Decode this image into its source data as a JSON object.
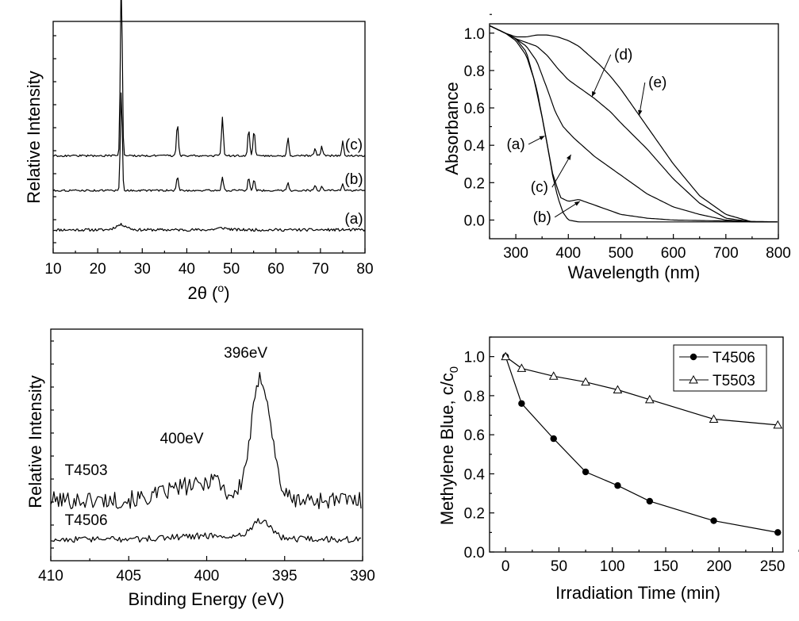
{
  "chart_data": [
    {
      "id": "xrd",
      "type": "line",
      "xlabel": "2θ (",
      "xlabel_sup": "o",
      "xlabel_end": ")",
      "ylabel": "Relative Intensity",
      "xlim": [
        10,
        80
      ],
      "xticks": [
        "10",
        "20",
        "30",
        "40",
        "50",
        "60",
        "70",
        "80"
      ],
      "series": [
        {
          "name": "(a)",
          "baseline": 0.1,
          "noise": 0.006,
          "peaks": [
            [
              25.3,
              0.022
            ],
            [
              48,
              0.008
            ]
          ],
          "width": 1.8
        },
        {
          "name": "(b)",
          "baseline": 0.27,
          "noise": 0.004,
          "peaks": [
            [
              25.3,
              0.43
            ],
            [
              37.9,
              0.06
            ],
            [
              48.0,
              0.06
            ],
            [
              53.9,
              0.055
            ],
            [
              55.1,
              0.05
            ],
            [
              62.7,
              0.035
            ],
            [
              68.8,
              0.02
            ],
            [
              70.3,
              0.02
            ],
            [
              75.0,
              0.025
            ]
          ],
          "width": 0.3
        },
        {
          "name": "(c)",
          "baseline": 0.42,
          "noise": 0.004,
          "peaks": [
            [
              25.3,
              0.78
            ],
            [
              37.9,
              0.14
            ],
            [
              48.0,
              0.17
            ],
            [
              53.9,
              0.12
            ],
            [
              55.1,
              0.11
            ],
            [
              62.7,
              0.08
            ],
            [
              68.8,
              0.035
            ],
            [
              70.3,
              0.04
            ],
            [
              75.0,
              0.06
            ]
          ],
          "width": 0.3
        }
      ]
    },
    {
      "id": "uvvis",
      "type": "line",
      "xlabel": "Wavelength (nm)",
      "ylabel": "Absorbance",
      "xlim": [
        250,
        800
      ],
      "ylim": [
        -0.1,
        1.05
      ],
      "xticks": [
        300,
        400,
        500,
        600,
        700,
        800
      ],
      "yticks": [
        "0.0",
        "0.2",
        "0.4",
        "0.6",
        "0.8",
        "1.0"
      ],
      "series": [
        {
          "name": "(a)",
          "x": [
            250,
            280,
            300,
            320,
            335,
            350,
            360,
            370,
            380,
            390,
            400,
            420,
            450,
            500,
            800
          ],
          "y": [
            1.04,
            1.0,
            0.96,
            0.88,
            0.75,
            0.55,
            0.4,
            0.24,
            0.12,
            0.04,
            0.0,
            -0.01,
            -0.01,
            -0.01,
            -0.01
          ]
        },
        {
          "name": "(b)",
          "x": [
            250,
            280,
            300,
            320,
            340,
            355,
            370,
            385,
            400,
            420,
            440,
            470,
            500,
            550,
            600,
            800
          ],
          "y": [
            1.04,
            1.0,
            0.97,
            0.9,
            0.7,
            0.48,
            0.25,
            0.12,
            0.1,
            0.11,
            0.09,
            0.06,
            0.03,
            0.01,
            0.0,
            -0.01
          ]
        },
        {
          "name": "(c)",
          "x": [
            250,
            280,
            300,
            320,
            340,
            360,
            375,
            390,
            410,
            430,
            450,
            500,
            550,
            600,
            650,
            700,
            750,
            800
          ],
          "y": [
            1.04,
            1.0,
            0.97,
            0.93,
            0.85,
            0.7,
            0.58,
            0.5,
            0.44,
            0.39,
            0.34,
            0.24,
            0.14,
            0.07,
            0.03,
            0.0,
            -0.01,
            -0.01
          ]
        },
        {
          "name": "(d)",
          "x": [
            250,
            280,
            300,
            320,
            340,
            360,
            380,
            400,
            420,
            450,
            480,
            500,
            550,
            600,
            650,
            700,
            750,
            800
          ],
          "y": [
            1.04,
            1.0,
            0.97,
            0.95,
            0.93,
            0.88,
            0.81,
            0.75,
            0.71,
            0.65,
            0.58,
            0.52,
            0.38,
            0.22,
            0.09,
            0.01,
            -0.01,
            -0.01
          ]
        },
        {
          "name": "(e)",
          "x": [
            250,
            280,
            300,
            320,
            340,
            360,
            380,
            400,
            420,
            440,
            460,
            480,
            500,
            550,
            600,
            650,
            700,
            750,
            800
          ],
          "y": [
            1.04,
            1.0,
            0.98,
            0.98,
            0.99,
            0.99,
            0.98,
            0.96,
            0.93,
            0.88,
            0.83,
            0.77,
            0.7,
            0.5,
            0.3,
            0.13,
            0.03,
            -0.01,
            -0.01
          ]
        }
      ],
      "labels": [
        {
          "text": "(a)",
          "x": 300,
          "y": 0.38,
          "arrow_to": [
            355,
            0.45
          ]
        },
        {
          "text": "(c)",
          "x": 345,
          "y": 0.15,
          "arrow_to": [
            405,
            0.35
          ]
        },
        {
          "text": "(b)",
          "x": 350,
          "y": -0.01,
          "arrow_to": [
            422,
            0.1
          ]
        },
        {
          "text": "(d)",
          "x": 505,
          "y": 0.86,
          "arrow_to": [
            445,
            0.66
          ]
        },
        {
          "text": "(e)",
          "x": 570,
          "y": 0.71,
          "arrow_to": [
            535,
            0.56
          ]
        }
      ]
    },
    {
      "id": "xps",
      "type": "line",
      "xlabel": "Binding Energy (eV)",
      "ylabel": "Relative Intensity",
      "xlim": [
        410,
        390
      ],
      "xticks": [
        410,
        405,
        400,
        395,
        390
      ],
      "series": [
        {
          "name": "T4503",
          "baseline": 0.34,
          "noise": 0.05,
          "hump": [
            401,
            0.08,
            2.2
          ],
          "peaks": [
            [
              396.5,
              0.68,
              0.9
            ],
            [
              399.5,
              0.08,
              0.6
            ]
          ]
        },
        {
          "name": "T4506",
          "baseline": 0.12,
          "noise": 0.018,
          "hump": [
            400,
            0.02,
            3.0
          ],
          "peaks": [
            [
              396.5,
              0.1,
              0.9
            ]
          ]
        }
      ],
      "annotations": [
        {
          "text": "396eV",
          "x": 397.5,
          "y": 1.14
        },
        {
          "text": "400eV",
          "x": 401.6,
          "y": 0.66
        },
        {
          "text": "T4503",
          "x": 409.1,
          "y": 0.48
        },
        {
          "text": "T4506",
          "x": 409.1,
          "y": 0.2
        }
      ]
    },
    {
      "id": "photocatalysis",
      "type": "line",
      "xlabel": "Irradiation Time (min)",
      "ylabel": "Methylene Blue, c/c",
      "ylabel_sub": "0",
      "xlim": [
        -15,
        260
      ],
      "ylim": [
        0.0,
        1.1
      ],
      "xticks": [
        0,
        50,
        100,
        150,
        200,
        250
      ],
      "yticks": [
        "0.0",
        "0.2",
        "0.4",
        "0.6",
        "0.8",
        "1.0"
      ],
      "legend_position": "top-right",
      "series": [
        {
          "name": "T4506",
          "marker": "filled-circle",
          "x": [
            0,
            15,
            45,
            75,
            105,
            135,
            195,
            255
          ],
          "y": [
            1.0,
            0.76,
            0.58,
            0.41,
            0.34,
            0.26,
            0.16,
            0.1
          ]
        },
        {
          "name": "T5503",
          "marker": "open-triangle",
          "x": [
            0,
            15,
            45,
            75,
            105,
            135,
            195,
            255
          ],
          "y": [
            1.0,
            0.94,
            0.9,
            0.87,
            0.83,
            0.78,
            0.68,
            0.65
          ]
        }
      ]
    }
  ]
}
